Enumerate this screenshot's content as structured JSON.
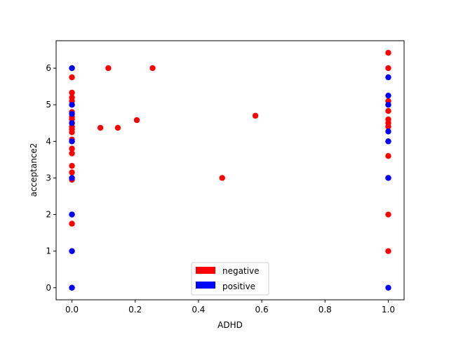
{
  "chart_data": {
    "type": "scatter",
    "title": "",
    "xlabel": "ADHD",
    "ylabel": "acceptance2",
    "xlim": [
      -0.05,
      1.05
    ],
    "ylim": [
      -0.33,
      6.75
    ],
    "xticks": [
      0.0,
      0.2,
      0.4,
      0.6,
      0.8,
      1.0
    ],
    "xtick_labels": [
      "0.0",
      "0.2",
      "0.4",
      "0.6",
      "0.8",
      "1.0"
    ],
    "yticks": [
      0,
      1,
      2,
      3,
      4,
      5,
      6
    ],
    "ytick_labels": [
      "0",
      "1",
      "2",
      "3",
      "4",
      "5",
      "6"
    ],
    "grid": false,
    "legend_position": "bottom-center",
    "series": [
      {
        "name": "negative",
        "color": "#ff0000",
        "points": [
          [
            0.0,
            0.0
          ],
          [
            0.0,
            1.0
          ],
          [
            0.0,
            1.75
          ],
          [
            0.0,
            2.0
          ],
          [
            0.0,
            2.95
          ],
          [
            0.0,
            3.15
          ],
          [
            0.0,
            3.33
          ],
          [
            0.0,
            3.67
          ],
          [
            0.0,
            3.8
          ],
          [
            0.0,
            4.0
          ],
          [
            0.0,
            4.05
          ],
          [
            0.0,
            4.25
          ],
          [
            0.0,
            4.33
          ],
          [
            0.0,
            4.4
          ],
          [
            0.0,
            4.5
          ],
          [
            0.0,
            4.6
          ],
          [
            0.0,
            4.67
          ],
          [
            0.0,
            4.8
          ],
          [
            0.0,
            5.0
          ],
          [
            0.0,
            5.1
          ],
          [
            0.0,
            5.2
          ],
          [
            0.0,
            5.33
          ],
          [
            0.0,
            5.75
          ],
          [
            0.0,
            6.0
          ],
          [
            0.09,
            4.37
          ],
          [
            0.115,
            6.0
          ],
          [
            0.145,
            4.37
          ],
          [
            0.205,
            4.58
          ],
          [
            0.255,
            6.0
          ],
          [
            0.475,
            3.0
          ],
          [
            0.58,
            4.7
          ],
          [
            1.0,
            1.0
          ],
          [
            1.0,
            2.0
          ],
          [
            1.0,
            3.0
          ],
          [
            1.0,
            3.6
          ],
          [
            1.0,
            4.0
          ],
          [
            1.0,
            4.4
          ],
          [
            1.0,
            4.5
          ],
          [
            1.0,
            4.6
          ],
          [
            1.0,
            4.83
          ],
          [
            1.0,
            5.0
          ],
          [
            1.0,
            5.1
          ],
          [
            1.0,
            6.0
          ],
          [
            1.0,
            6.42
          ]
        ]
      },
      {
        "name": "positive",
        "color": "#0000ff",
        "points": [
          [
            0.0,
            0.0
          ],
          [
            0.0,
            1.0
          ],
          [
            0.0,
            2.0
          ],
          [
            0.0,
            3.0
          ],
          [
            0.0,
            4.0
          ],
          [
            0.0,
            4.5
          ],
          [
            0.0,
            4.75
          ],
          [
            0.0,
            5.0
          ],
          [
            0.0,
            6.0
          ],
          [
            1.0,
            0.0
          ],
          [
            1.0,
            3.0
          ],
          [
            1.0,
            4.0
          ],
          [
            1.0,
            4.27
          ],
          [
            1.0,
            5.0
          ],
          [
            1.0,
            5.25
          ],
          [
            1.0,
            5.75
          ]
        ]
      }
    ]
  }
}
